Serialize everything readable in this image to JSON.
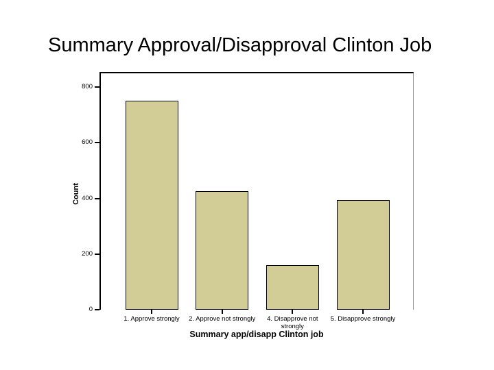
{
  "slide": {
    "title": "Summary Approval/Disapproval Clinton Job"
  },
  "chart_data": {
    "type": "bar",
    "title": "",
    "categories": [
      "1. Approve strongly",
      "2. Approve not strongly",
      "4. Disapprove not\nstrongly",
      "5. Disapprove strongly"
    ],
    "values": [
      750,
      425,
      160,
      395
    ],
    "xlabel": "Summary app/disapp Clinton job",
    "ylabel": "Count",
    "ylim": [
      0,
      800
    ],
    "yticks": [
      0,
      200,
      400,
      600,
      800
    ],
    "grid": false,
    "legend": false,
    "bar_fill": "#d2cd96",
    "bar_border": "#000000",
    "frame_side_color": "#999999"
  }
}
